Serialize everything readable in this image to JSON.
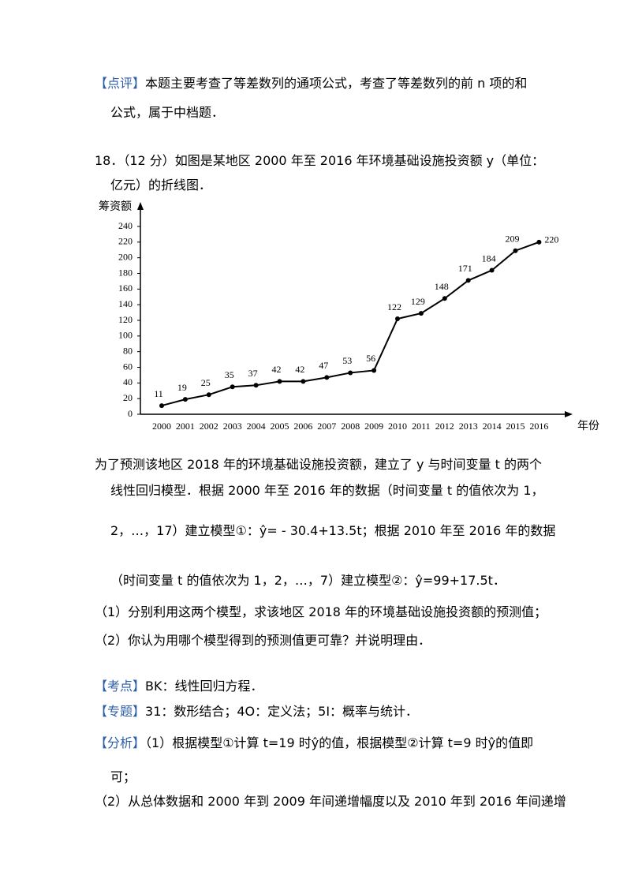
{
  "document": {
    "lines": [
      {
        "tag": "【点评】",
        "text": "本题主要考查了等差数列的通项公式，考查了等差数列的前 n 项的和"
      },
      {
        "text": "公式，属于中档题．"
      },
      {
        "text": "18．（12 分）如图是某地区 2000 年至 2016 年环境基础设施投资额 y（单位："
      },
      {
        "text": "亿元）的折线图．"
      },
      {
        "text": "为了预测该地区 2018 年的环境基础设施投资额，建立了 y 与时间变量 t 的两个"
      },
      {
        "text": "线性回归模型．根据 2000 年至 2016 年的数据（时间变量 t 的值依次为 1，"
      },
      {
        "text": "2，…，17）建立模型①：ŷ= - 30.4+13.5t；根据 2010 年至 2016 年的数据"
      },
      {
        "text": "（时间变量 t 的值依次为 1，2，…，7）建立模型②：ŷ=99+17.5t．"
      },
      {
        "text": "（1）分别利用这两个模型，求该地区 2018 年的环境基础设施投资额的预测值；"
      },
      {
        "text": "（2）你认为用哪个模型得到的预测值更可靠？并说明理由．"
      },
      {
        "tag": "【考点】",
        "text": "BK：线性回归方程．"
      },
      {
        "tag": "【专题】",
        "text": "31：数形结合；4O：定义法；5I：概率与统计．"
      },
      {
        "tag": "【分析】",
        "text": "（1）根据模型①计算 t=19 时ŷ的值，根据模型②计算 t=9 时ŷ的值即"
      },
      {
        "text": "可；"
      },
      {
        "text": "（2）从总体数据和 2000 年到 2009 年间递增幅度以及 2010 年到 2016 年间递增"
      }
    ]
  },
  "chart_data": {
    "type": "line",
    "y_label": "筹资额",
    "x_label": "年份",
    "categories": [
      "2000",
      "2001",
      "2002",
      "2003",
      "2004",
      "2005",
      "2006",
      "2007",
      "2008",
      "2009",
      "2010",
      "2011",
      "2012",
      "2013",
      "2014",
      "2015",
      "2016"
    ],
    "values": [
      11,
      19,
      25,
      35,
      37,
      42,
      42,
      47,
      53,
      56,
      122,
      129,
      148,
      171,
      184,
      209,
      220
    ],
    "color": "#000000",
    "ylim": [
      0,
      240
    ],
    "yticks": [
      0,
      20,
      40,
      60,
      80,
      100,
      120,
      140,
      160,
      180,
      200,
      220,
      240
    ]
  }
}
